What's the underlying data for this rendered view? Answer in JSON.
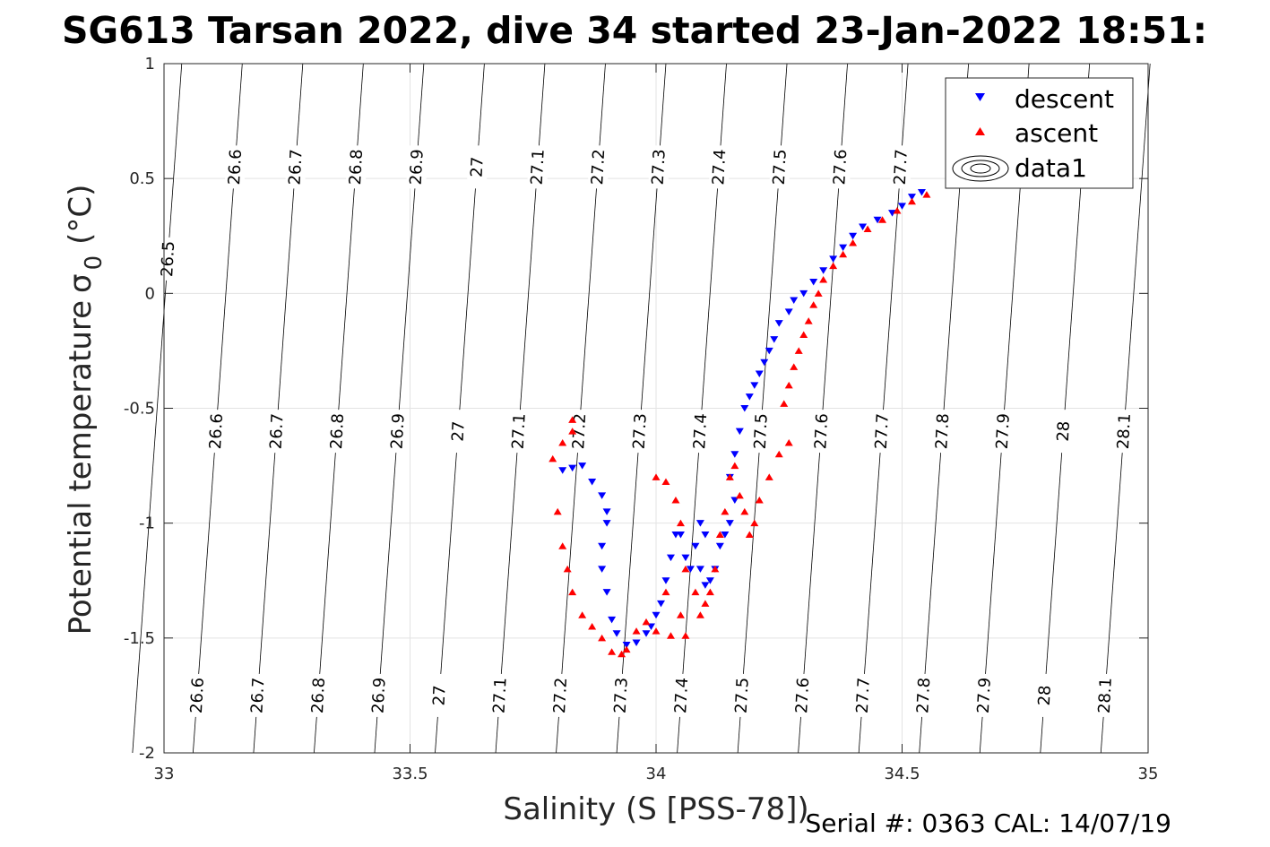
{
  "chart_data": {
    "type": "scatter",
    "title": "SG613 Tarsan 2022, dive 34 started 23-Jan-2022 18:51:",
    "xlabel": "Salinity (S [PSS-78])",
    "ylabel": "Potential temperature",
    "ylabel_symbol": "σ",
    "ylabel_sub": "0",
    "ylabel_unit": "(°C)",
    "xlim": [
      33,
      35
    ],
    "ylim": [
      -2,
      1
    ],
    "xticks": [
      "33",
      "33.5",
      "34",
      "34.5",
      "35"
    ],
    "yticks": [
      "1",
      "0.5",
      "0",
      "-0.5",
      "-1",
      "-1.5",
      "-2"
    ],
    "grid": true,
    "legend_position": "top-right",
    "legend": [
      "descent",
      "ascent",
      "data1"
    ],
    "contours": {
      "levels": [
        "26.5",
        "26.6",
        "26.7",
        "26.8",
        "26.9",
        "27",
        "27.1",
        "27.2",
        "27.3",
        "27.4",
        "27.5",
        "27.6",
        "27.7",
        "27.8",
        "27.9",
        "28",
        "28.1"
      ],
      "label_rows": [
        [
          "26.6",
          "26.7",
          "26.8",
          "26.9",
          "27",
          "27.1",
          "27.2",
          "27.3",
          "27.4",
          "27.5",
          "27.6",
          "27.7"
        ],
        [
          "26.6",
          "26.7",
          "26.8",
          "26.9",
          "27",
          "27.1",
          "27.2",
          "27.3",
          "27.4",
          "27.5",
          "27.6",
          "27.7",
          "27.8",
          "27.9",
          "28",
          "28.1"
        ],
        [
          "26.6",
          "26.7",
          "26.8",
          "26.9",
          "27",
          "27.1",
          "27.2",
          "27.3",
          "27.4",
          "27.5",
          "27.6",
          "27.7",
          "27.8",
          "27.9",
          "28",
          "28.1"
        ]
      ],
      "isolated_label": "26.5"
    },
    "series": [
      {
        "name": "descent",
        "color": "#0000ff",
        "marker": "triangle-down",
        "points": [
          [
            34.54,
            0.44
          ],
          [
            34.52,
            0.42
          ],
          [
            34.5,
            0.38
          ],
          [
            34.48,
            0.35
          ],
          [
            34.45,
            0.32
          ],
          [
            34.42,
            0.29
          ],
          [
            34.4,
            0.25
          ],
          [
            34.38,
            0.2
          ],
          [
            34.36,
            0.15
          ],
          [
            34.34,
            0.1
          ],
          [
            34.32,
            0.05
          ],
          [
            34.3,
            0.0
          ],
          [
            34.28,
            -0.03
          ],
          [
            34.27,
            -0.08
          ],
          [
            34.25,
            -0.13
          ],
          [
            34.24,
            -0.2
          ],
          [
            34.23,
            -0.25
          ],
          [
            34.22,
            -0.3
          ],
          [
            34.21,
            -0.35
          ],
          [
            34.2,
            -0.4
          ],
          [
            34.19,
            -0.45
          ],
          [
            34.18,
            -0.5
          ],
          [
            34.17,
            -0.6
          ],
          [
            34.16,
            -0.7
          ],
          [
            34.15,
            -0.8
          ],
          [
            34.16,
            -0.9
          ],
          [
            34.15,
            -1.0
          ],
          [
            34.14,
            -1.05
          ],
          [
            34.13,
            -1.1
          ],
          [
            34.12,
            -1.2
          ],
          [
            34.11,
            -1.25
          ],
          [
            34.1,
            -1.27
          ],
          [
            34.09,
            -1.2
          ],
          [
            34.1,
            -1.05
          ],
          [
            34.09,
            -1.0
          ],
          [
            34.08,
            -1.1
          ],
          [
            34.07,
            -1.2
          ],
          [
            34.06,
            -1.15
          ],
          [
            34.05,
            -1.05
          ],
          [
            34.04,
            -1.05
          ],
          [
            34.03,
            -1.15
          ],
          [
            34.02,
            -1.25
          ],
          [
            34.01,
            -1.35
          ],
          [
            34.0,
            -1.4
          ],
          [
            33.99,
            -1.45
          ],
          [
            33.98,
            -1.48
          ],
          [
            33.96,
            -1.52
          ],
          [
            33.94,
            -1.53
          ],
          [
            33.92,
            -1.48
          ],
          [
            33.91,
            -1.42
          ],
          [
            33.9,
            -1.3
          ],
          [
            33.89,
            -1.2
          ],
          [
            33.89,
            -1.1
          ],
          [
            33.9,
            -1.0
          ],
          [
            33.9,
            -0.95
          ],
          [
            33.89,
            -0.88
          ],
          [
            33.87,
            -0.82
          ],
          [
            33.85,
            -0.75
          ],
          [
            33.83,
            -0.76
          ],
          [
            33.81,
            -0.77
          ]
        ]
      },
      {
        "name": "ascent",
        "color": "#ff0000",
        "marker": "triangle-up",
        "points": [
          [
            34.55,
            0.43
          ],
          [
            34.52,
            0.4
          ],
          [
            34.49,
            0.36
          ],
          [
            34.46,
            0.32
          ],
          [
            34.43,
            0.28
          ],
          [
            34.4,
            0.22
          ],
          [
            34.38,
            0.17
          ],
          [
            34.36,
            0.12
          ],
          [
            34.34,
            0.06
          ],
          [
            34.33,
            0.0
          ],
          [
            34.32,
            -0.05
          ],
          [
            34.31,
            -0.12
          ],
          [
            34.3,
            -0.18
          ],
          [
            34.29,
            -0.25
          ],
          [
            34.28,
            -0.32
          ],
          [
            34.27,
            -0.4
          ],
          [
            34.26,
            -0.48
          ],
          [
            34.27,
            -0.65
          ],
          [
            34.25,
            -0.7
          ],
          [
            34.23,
            -0.8
          ],
          [
            34.21,
            -0.9
          ],
          [
            34.2,
            -1.0
          ],
          [
            34.19,
            -1.05
          ],
          [
            34.18,
            -0.95
          ],
          [
            34.17,
            -0.88
          ],
          [
            34.16,
            -0.75
          ],
          [
            34.15,
            -0.8
          ],
          [
            34.14,
            -0.95
          ],
          [
            34.13,
            -1.05
          ],
          [
            34.12,
            -1.2
          ],
          [
            34.11,
            -1.3
          ],
          [
            34.1,
            -1.35
          ],
          [
            34.09,
            -1.4
          ],
          [
            34.08,
            -1.3
          ],
          [
            34.06,
            -1.2
          ],
          [
            34.05,
            -1.0
          ],
          [
            34.04,
            -0.9
          ],
          [
            34.02,
            -0.82
          ],
          [
            34.0,
            -0.8
          ],
          [
            34.02,
            -1.3
          ],
          [
            34.05,
            -1.4
          ],
          [
            34.06,
            -1.49
          ],
          [
            34.03,
            -1.49
          ],
          [
            34.0,
            -1.47
          ],
          [
            33.98,
            -1.43
          ],
          [
            33.96,
            -1.47
          ],
          [
            33.94,
            -1.55
          ],
          [
            33.93,
            -1.57
          ],
          [
            33.91,
            -1.56
          ],
          [
            33.89,
            -1.5
          ],
          [
            33.87,
            -1.45
          ],
          [
            33.85,
            -1.4
          ],
          [
            33.83,
            -1.3
          ],
          [
            33.82,
            -1.2
          ],
          [
            33.81,
            -1.1
          ],
          [
            33.8,
            -0.95
          ],
          [
            33.79,
            -0.72
          ],
          [
            33.81,
            -0.65
          ],
          [
            33.83,
            -0.6
          ],
          [
            33.83,
            -0.55
          ]
        ]
      }
    ]
  },
  "footer": {
    "serial": "Serial #: 0363  CAL: 14/07/19"
  }
}
